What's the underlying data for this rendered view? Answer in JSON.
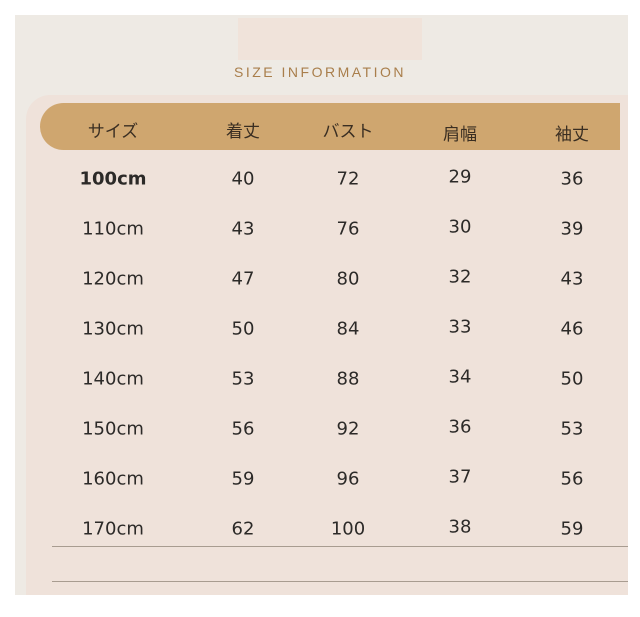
{
  "title": "SIZE INFORMATION",
  "colors": {
    "header_bg": "#cfa66f",
    "title": "#a97e4b",
    "panel": "#efe2da"
  },
  "columns": [
    "サイズ",
    "着丈",
    "バスト",
    "肩幅",
    "袖丈"
  ],
  "rows": [
    [
      "100cm",
      "40",
      "72",
      "29",
      "36"
    ],
    [
      "110cm",
      "43",
      "76",
      "30",
      "39"
    ],
    [
      "120cm",
      "47",
      "80",
      "32",
      "43"
    ],
    [
      "130cm",
      "50",
      "84",
      "33",
      "46"
    ],
    [
      "140cm",
      "53",
      "88",
      "34",
      "50"
    ],
    [
      "150cm",
      "56",
      "92",
      "36",
      "53"
    ],
    [
      "160cm",
      "59",
      "96",
      "37",
      "56"
    ],
    [
      "170cm",
      "62",
      "100",
      "38",
      "59"
    ]
  ]
}
